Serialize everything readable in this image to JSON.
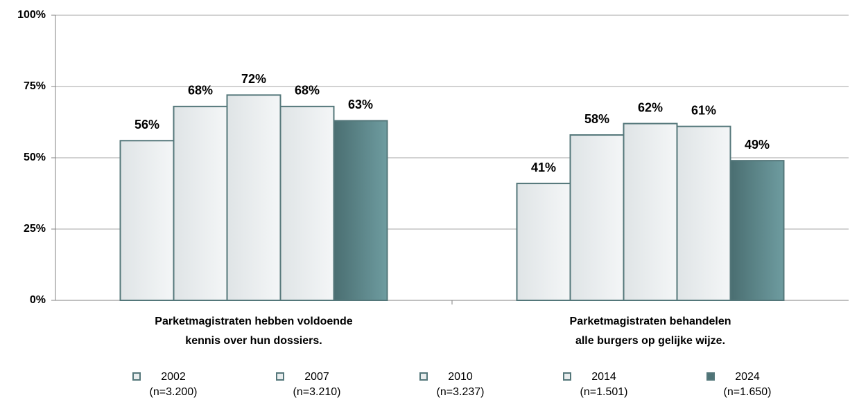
{
  "chart_data": {
    "type": "bar",
    "categories": [
      [
        "Parketmagistraten hebben voldoende",
        "kennis over hun dossiers."
      ],
      [
        "Parketmagistraten behandelen",
        "alle burgers op gelijke wijze."
      ]
    ],
    "series": [
      {
        "name": "2002",
        "note": "(n=3.200)",
        "color": "#e9edee",
        "values": [
          56,
          41
        ],
        "value_labels": [
          "56%",
          "41%"
        ]
      },
      {
        "name": "2007",
        "note": "(n=3.210)",
        "color": "#e9edee",
        "values": [
          68,
          58
        ],
        "value_labels": [
          "68%",
          "58%"
        ]
      },
      {
        "name": "2010",
        "note": "(n=3.237)",
        "color": "#e9edee",
        "values": [
          72,
          62
        ],
        "value_labels": [
          "72%",
          "62%"
        ]
      },
      {
        "name": "2014",
        "note": "(n=1.501)",
        "color": "#e9edee",
        "values": [
          68,
          61
        ],
        "value_labels": [
          "68%",
          "61%"
        ]
      },
      {
        "name": "2024",
        "note": "(n=1.650)",
        "color": "#5b8a8e",
        "values": [
          63,
          49
        ],
        "value_labels": [
          "63%",
          "49%"
        ]
      }
    ],
    "ylim": [
      0,
      100
    ],
    "yticks": [
      {
        "value": 0,
        "label": "0%"
      },
      {
        "value": 25,
        "label": "25%"
      },
      {
        "value": 50,
        "label": "50%"
      },
      {
        "value": 75,
        "label": "75%"
      },
      {
        "value": 100,
        "label": "100%"
      }
    ],
    "grid": true
  }
}
